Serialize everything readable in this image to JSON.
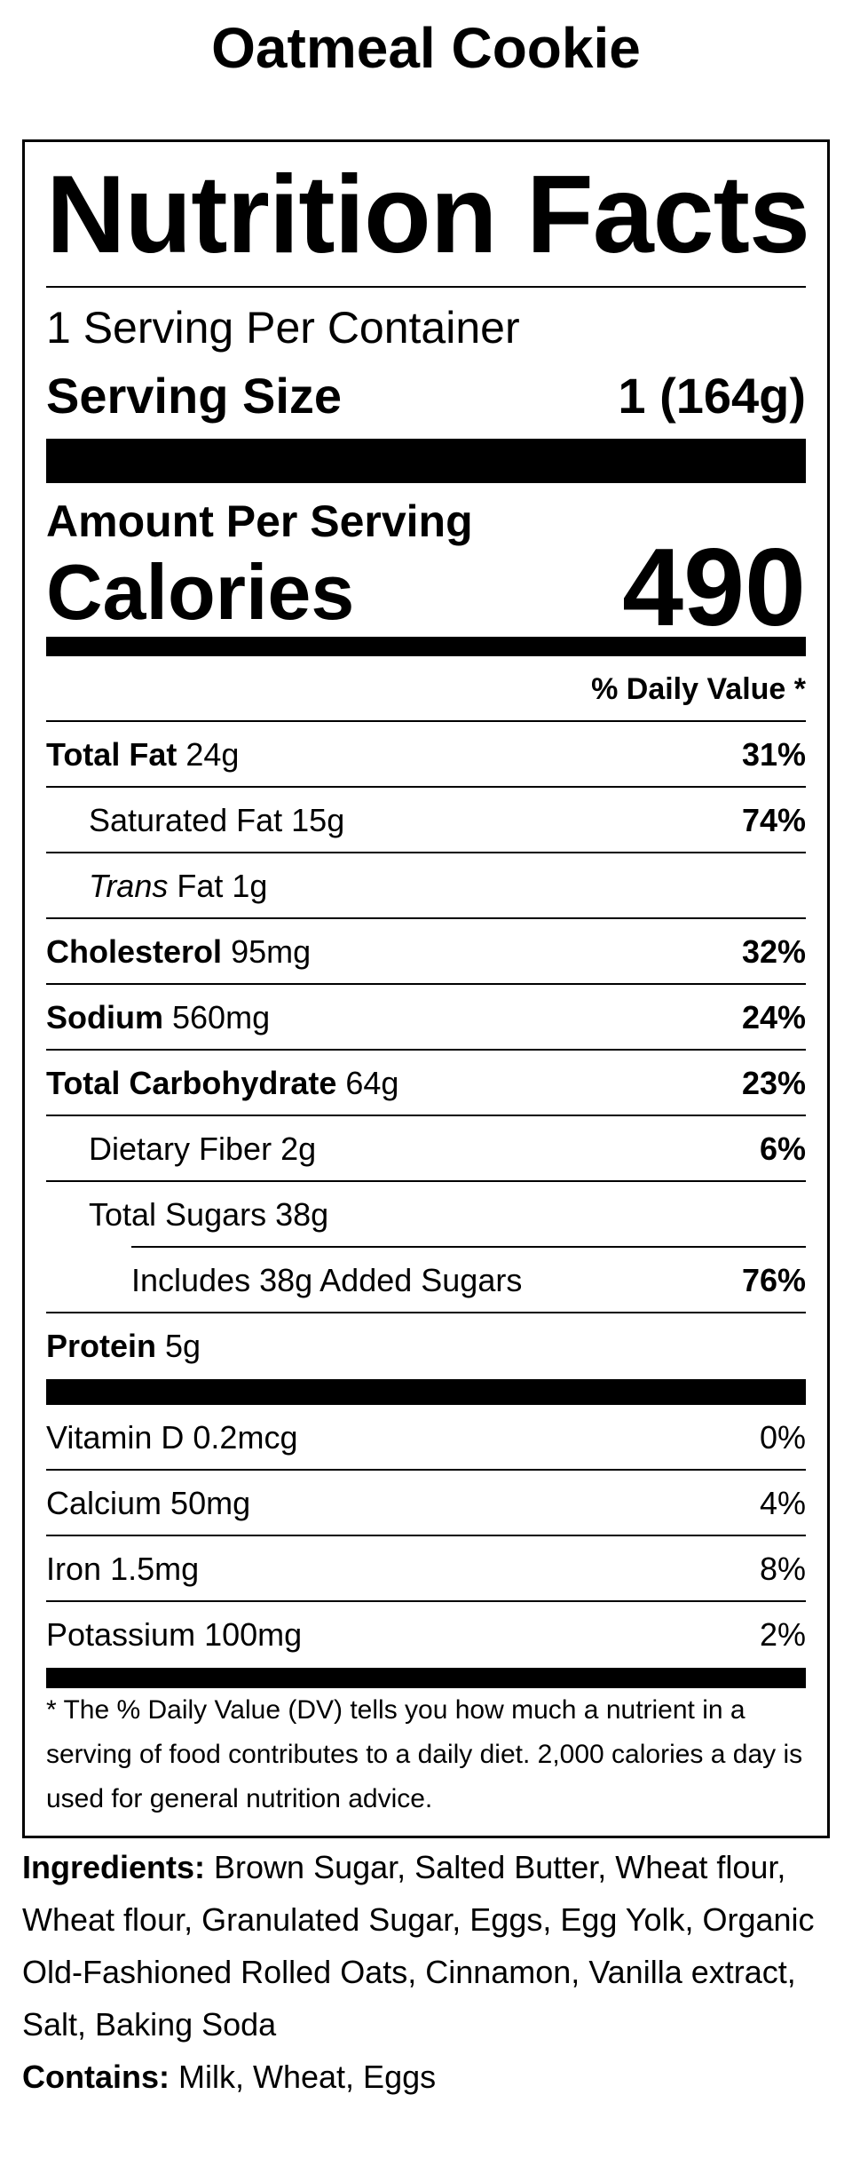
{
  "title": "Oatmeal Cookie",
  "label": {
    "heading": "Nutrition Facts",
    "servings_per_container": "1 Serving Per Container",
    "serving_size": {
      "label": "Serving Size",
      "value": "1 (164g)"
    },
    "amount_per_serving": "Amount Per Serving",
    "calories": {
      "label": "Calories",
      "value": 490
    },
    "daily_value_header": "% Daily Value *",
    "nutrients": [
      {
        "name": "Total Fat",
        "amount": "24g",
        "dv": "31%",
        "bold": true,
        "indent": 0
      },
      {
        "name": "Saturated Fat",
        "amount": "15g",
        "dv": "74%",
        "bold": false,
        "indent": 1
      },
      {
        "name_italic": "Trans",
        "name": "Fat",
        "amount": "1g",
        "bold": false,
        "indent": 1
      },
      {
        "name": "Cholesterol",
        "amount": "95mg",
        "dv": "32%",
        "bold": true,
        "indent": 0
      },
      {
        "name": "Sodium",
        "amount": "560mg",
        "dv": "24%",
        "bold": true,
        "indent": 0
      },
      {
        "name": "Total Carbohydrate",
        "amount": "64g",
        "dv": "23%",
        "bold": true,
        "indent": 0
      },
      {
        "name": "Dietary Fiber",
        "amount": "2g",
        "dv": "6%",
        "bold": false,
        "indent": 1
      },
      {
        "name": "Total Sugars",
        "amount": "38g",
        "bold": false,
        "indent": 1
      },
      {
        "name": "Includes 38g Added Sugars",
        "dv": "76%",
        "bold": false,
        "indent": 2
      },
      {
        "name": "Protein",
        "amount": "5g",
        "bold": true,
        "indent": 0
      }
    ],
    "vitamins": [
      {
        "name": "Vitamin D",
        "amount": "0.2mcg",
        "dv": "0%"
      },
      {
        "name": "Calcium",
        "amount": "50mg",
        "dv": "4%"
      },
      {
        "name": "Iron",
        "amount": "1.5mg",
        "dv": "8%"
      },
      {
        "name": "Potassium",
        "amount": "100mg",
        "dv": "2%"
      }
    ],
    "footnote": "* The % Daily Value (DV) tells you how much a nutrient in a serving of food contributes to a daily diet. 2,000 calories a day is used for general nutrition advice."
  },
  "ingredients": {
    "label": "Ingredients:",
    "text": "Brown Sugar, Salted Butter, Wheat flour, Wheat flour, Granulated Sugar, Eggs, Egg Yolk, Organic Old-Fashioned Rolled Oats, Cinnamon, Vanilla extract, Salt, Baking Soda"
  },
  "contains": {
    "label": "Contains:",
    "text": "Milk, Wheat, Eggs"
  }
}
